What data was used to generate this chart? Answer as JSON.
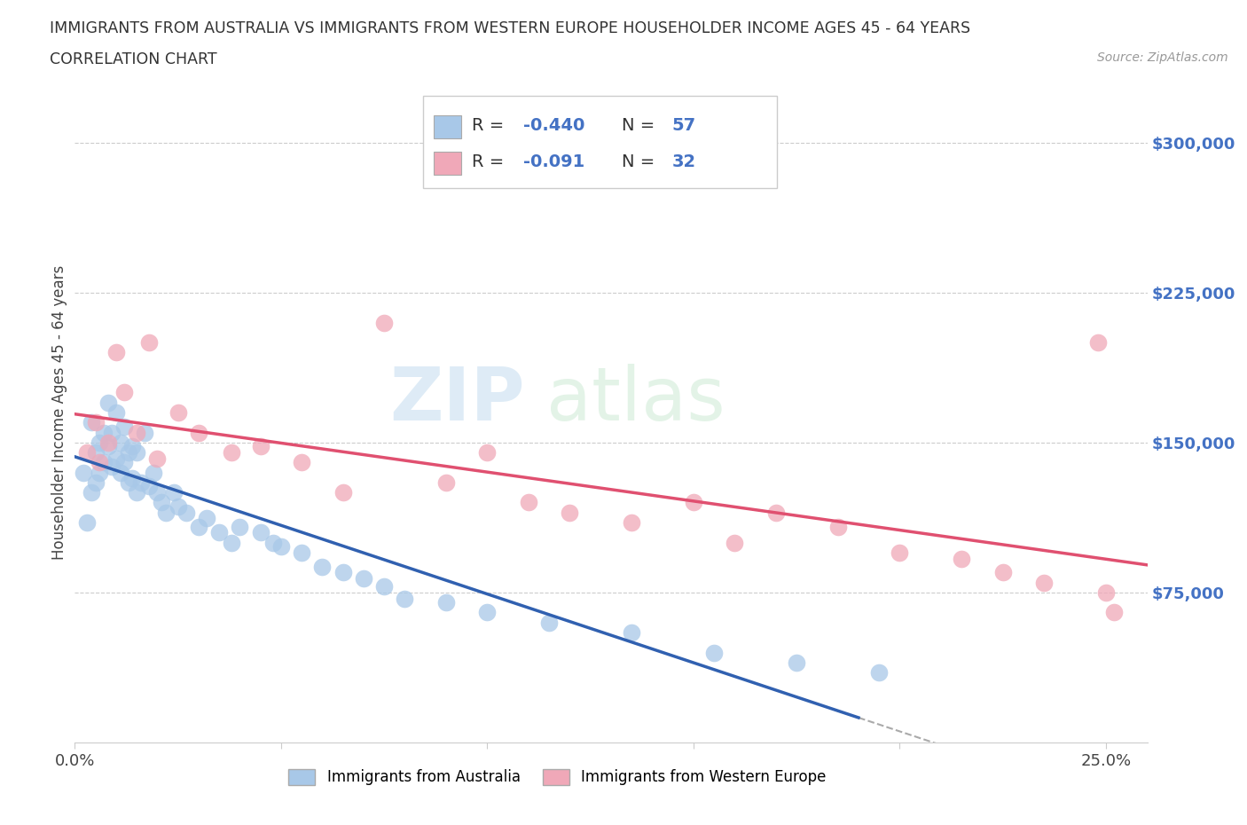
{
  "title_line1": "IMMIGRANTS FROM AUSTRALIA VS IMMIGRANTS FROM WESTERN EUROPE HOUSEHOLDER INCOME AGES 45 - 64 YEARS",
  "title_line2": "CORRELATION CHART",
  "source_text": "Source: ZipAtlas.com",
  "ylabel": "Householder Income Ages 45 - 64 years",
  "xlim": [
    0.0,
    0.26
  ],
  "ylim": [
    0,
    330000
  ],
  "xticks": [
    0.0,
    0.05,
    0.1,
    0.15,
    0.2,
    0.25
  ],
  "xtick_labels": [
    "0.0%",
    "",
    "",
    "",
    "",
    "25.0%"
  ],
  "ytick_labels": [
    "$75,000",
    "$150,000",
    "$225,000",
    "$300,000"
  ],
  "ytick_values": [
    75000,
    150000,
    225000,
    300000
  ],
  "background_color": "#ffffff",
  "watermark_text1": "ZIP",
  "watermark_text2": "atlas",
  "legend_r1": "-0.440",
  "legend_n1": "57",
  "legend_r2": "-0.091",
  "legend_n2": "32",
  "color_blue": "#a8c8e8",
  "color_pink": "#f0a8b8",
  "color_blue_line": "#3060b0",
  "color_pink_line": "#e05070",
  "label1": "Immigrants from Australia",
  "label2": "Immigrants from Western Europe",
  "australia_x": [
    0.002,
    0.003,
    0.004,
    0.004,
    0.005,
    0.005,
    0.006,
    0.006,
    0.007,
    0.007,
    0.008,
    0.008,
    0.009,
    0.009,
    0.01,
    0.01,
    0.011,
    0.011,
    0.012,
    0.012,
    0.013,
    0.013,
    0.014,
    0.014,
    0.015,
    0.015,
    0.016,
    0.017,
    0.018,
    0.019,
    0.02,
    0.021,
    0.022,
    0.024,
    0.025,
    0.027,
    0.03,
    0.032,
    0.035,
    0.038,
    0.04,
    0.045,
    0.048,
    0.05,
    0.055,
    0.06,
    0.065,
    0.07,
    0.075,
    0.08,
    0.09,
    0.1,
    0.115,
    0.135,
    0.155,
    0.175,
    0.195
  ],
  "australia_y": [
    135000,
    110000,
    160000,
    125000,
    145000,
    130000,
    150000,
    135000,
    155000,
    140000,
    170000,
    148000,
    155000,
    138000,
    165000,
    142000,
    150000,
    135000,
    158000,
    140000,
    145000,
    130000,
    148000,
    132000,
    145000,
    125000,
    130000,
    155000,
    128000,
    135000,
    125000,
    120000,
    115000,
    125000,
    118000,
    115000,
    108000,
    112000,
    105000,
    100000,
    108000,
    105000,
    100000,
    98000,
    95000,
    88000,
    85000,
    82000,
    78000,
    72000,
    70000,
    65000,
    60000,
    55000,
    45000,
    40000,
    35000
  ],
  "western_europe_x": [
    0.003,
    0.005,
    0.006,
    0.008,
    0.01,
    0.012,
    0.015,
    0.018,
    0.02,
    0.025,
    0.03,
    0.038,
    0.045,
    0.055,
    0.065,
    0.075,
    0.09,
    0.1,
    0.11,
    0.12,
    0.135,
    0.15,
    0.16,
    0.17,
    0.185,
    0.2,
    0.215,
    0.225,
    0.235,
    0.248,
    0.25,
    0.252
  ],
  "western_europe_y": [
    145000,
    160000,
    140000,
    150000,
    195000,
    175000,
    155000,
    200000,
    142000,
    165000,
    155000,
    145000,
    148000,
    140000,
    125000,
    210000,
    130000,
    145000,
    120000,
    115000,
    110000,
    120000,
    100000,
    115000,
    108000,
    95000,
    92000,
    85000,
    80000,
    200000,
    75000,
    65000
  ]
}
